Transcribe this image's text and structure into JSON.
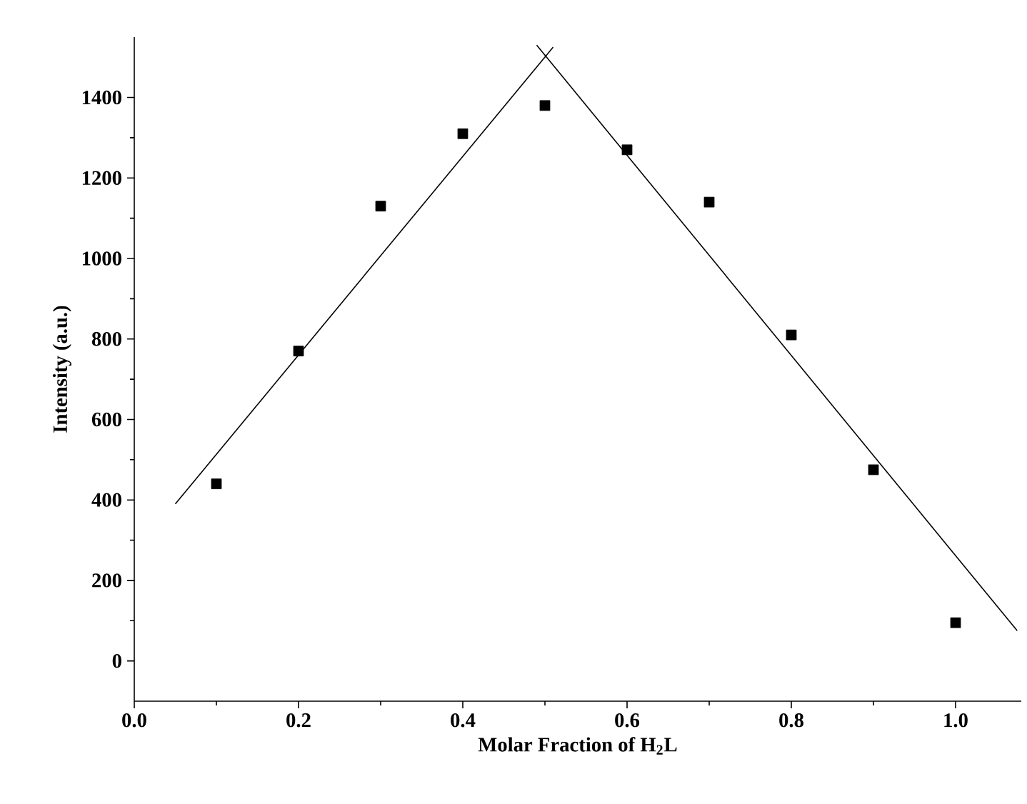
{
  "chart_data": {
    "type": "scatter",
    "xlabel": "Molar Fraction of H$_{2}$L",
    "ylabel": "Intensity (a.u.)",
    "xlim": [
      0,
      1.08
    ],
    "ylim": [
      -100,
      1550
    ],
    "xticks": [
      {
        "value": 0,
        "label": "0.0"
      },
      0.2,
      0.4,
      0.6,
      0.8,
      {
        "value": 1,
        "label": "1.0"
      }
    ],
    "yticks": [
      0,
      200,
      400,
      600,
      800,
      1000,
      1200,
      1400
    ],
    "series": [
      {
        "color": "#000000",
        "marker": "square",
        "x": [
          0.1,
          0.2,
          0.3,
          0.4,
          0.5,
          0.6,
          0.7,
          0.8,
          0.9,
          1.0
        ],
        "values": [
          440,
          770,
          1130,
          1310,
          1380,
          1270,
          1140,
          810,
          475,
          95
        ]
      },
      {
        "type": "line",
        "color": "#000000",
        "marker": "none",
        "line_style": "solid",
        "x": [
          0.05,
          0.51
        ],
        "values": [
          390,
          1525
        ]
      },
      {
        "type": "line",
        "color": "#000000",
        "marker": "none",
        "line_style": "solid",
        "x": [
          0.49,
          1.075
        ],
        "values": [
          1530,
          75
        ]
      }
    ]
  }
}
